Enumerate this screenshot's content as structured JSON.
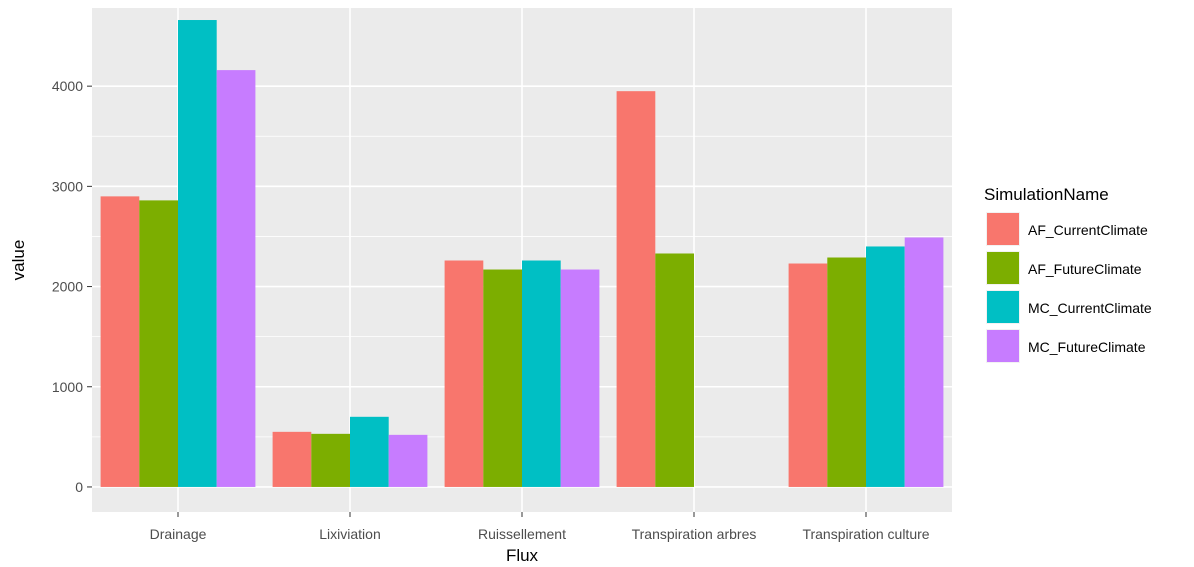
{
  "chart_data": {
    "type": "bar",
    "xlabel": "Flux",
    "ylabel": "value",
    "ylim": [
      -250,
      4780
    ],
    "yticks": [
      0,
      1000,
      2000,
      3000,
      4000
    ],
    "ytick_labels": [
      "0",
      "1000",
      "2000",
      "3000",
      "4000"
    ],
    "grid": true,
    "legend_position": "right",
    "legend_title": "SimulationName",
    "categories": [
      "Drainage",
      "Lixiviation",
      "Ruissellement",
      "Transpiration arbres",
      "Transpiration culture"
    ],
    "series": [
      {
        "name": "AF_CurrentClimate",
        "color": "#F8766D",
        "values": [
          2900,
          550,
          2260,
          3950,
          2230
        ]
      },
      {
        "name": "AF_FutureClimate",
        "color": "#7CAE00",
        "values": [
          2860,
          530,
          2170,
          2330,
          2290
        ]
      },
      {
        "name": "MC_CurrentClimate",
        "color": "#00BFC4",
        "values": [
          4660,
          700,
          2260,
          null,
          2400
        ]
      },
      {
        "name": "MC_FutureClimate",
        "color": "#C77CFF",
        "values": [
          4160,
          520,
          2170,
          null,
          2490
        ]
      }
    ]
  }
}
